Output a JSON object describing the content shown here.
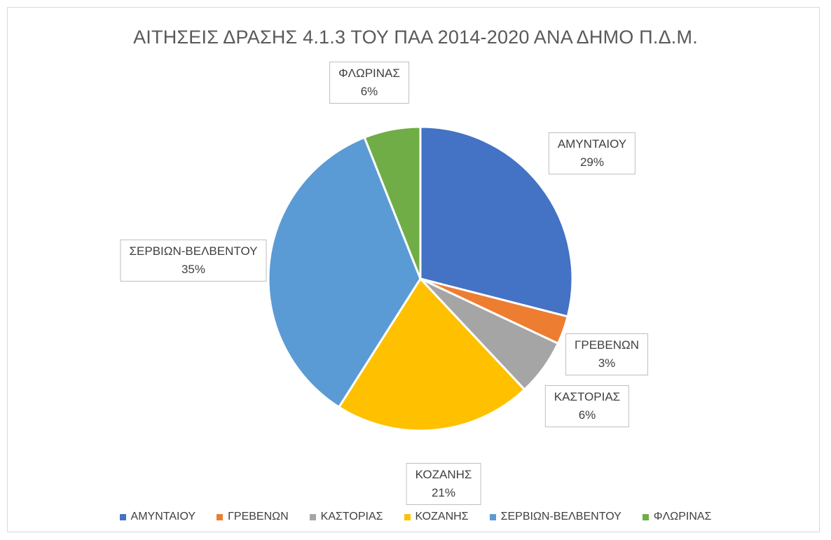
{
  "chart_data": {
    "type": "pie",
    "title": "ΑΙΤΗΣΕΙΣ ΔΡΑΣΗΣ 4.1.3 ΤΟΥ ΠΑΑ 2014-2020 ΑΝΑ ΔΗΜΟ Π.Δ.Μ.",
    "legend": "bottom",
    "slices": [
      {
        "label": "ΑΜΥΝΤΑΙΟΥ",
        "value": 29,
        "display": "29%",
        "color": "#4472C4"
      },
      {
        "label": "ΓΡΕΒΕΝΩΝ",
        "value": 3,
        "display": "3%",
        "color": "#ED7D31"
      },
      {
        "label": "ΚΑΣΤΟΡΙΑΣ",
        "value": 6,
        "display": "6%",
        "color": "#A5A5A5"
      },
      {
        "label": "ΚΟΖΑΝΗΣ",
        "value": 21,
        "display": "21%",
        "color": "#FFC000"
      },
      {
        "label": "ΣΕΡΒΙΩΝ-ΒΕΛΒΕΝΤΟΥ",
        "value": 35,
        "display": "35%",
        "color": "#5B9BD5"
      },
      {
        "label": "ΦΛΩΡΙΝΑΣ",
        "value": 6,
        "display": "6%",
        "color": "#70AD47"
      }
    ]
  }
}
